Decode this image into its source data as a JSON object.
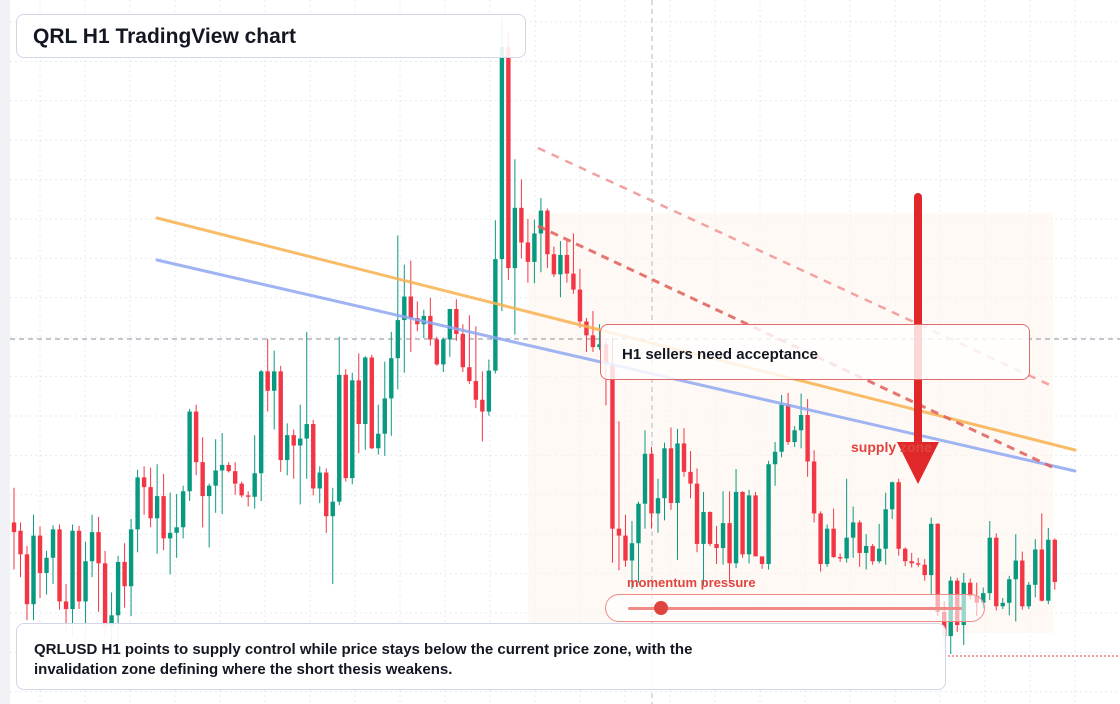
{
  "header": {
    "title": "QRL H1 TradingView chart"
  },
  "callout": {
    "text": "H1 sellers need acceptance"
  },
  "zone": {
    "label": "supply zone"
  },
  "momentum": {
    "label": "momentum pressure",
    "level": 0.1
  },
  "summary": {
    "text": "QRLUSD H1 points to supply control while price stays below the current price zone, with the invalidation zone defining where the short thesis weakens."
  },
  "colors": {
    "up": "#089981",
    "down": "#f23645",
    "accent": "#e0443e",
    "trend_orange": "#f7b250",
    "trend_blue": "#8fa8f0"
  },
  "chart_data": {
    "type": "candlestick",
    "symbol": "QRLUSD",
    "timeframe": "H1",
    "grid": true,
    "price_range": [
      0,
      100
    ],
    "candles": [
      [
        26.2,
        31.2,
        19.4,
        24.8
      ],
      [
        25.0,
        26.2,
        18.3,
        21.6
      ],
      [
        21.6,
        22.8,
        12.1,
        14.4
      ],
      [
        14.4,
        27.3,
        12.1,
        24.3
      ],
      [
        24.3,
        25.6,
        15.3,
        18.9
      ],
      [
        18.9,
        22.1,
        15.8,
        21.1
      ],
      [
        21.1,
        25.8,
        17.3,
        25.2
      ],
      [
        25.2,
        25.9,
        13.6,
        14.8
      ],
      [
        14.8,
        17.3,
        10.5,
        13.7
      ],
      [
        13.7,
        25.9,
        9.6,
        25.0
      ],
      [
        25.0,
        25.7,
        13.7,
        14.8
      ],
      [
        14.8,
        23.4,
        9.6,
        20.6
      ],
      [
        20.6,
        27.3,
        18.3,
        24.8
      ],
      [
        24.8,
        27.0,
        13.3,
        20.3
      ],
      [
        20.3,
        22.1,
        10.0,
        11.2
      ],
      [
        11.2,
        16.1,
        6.5,
        12.8
      ],
      [
        12.8,
        21.4,
        9.4,
        20.5
      ],
      [
        20.5,
        23.2,
        13.9,
        17.0
      ],
      [
        17.0,
        26.7,
        12.7,
        25.2
      ],
      [
        25.2,
        33.8,
        21.9,
        32.7
      ],
      [
        32.7,
        34.3,
        27.3,
        31.3
      ],
      [
        31.3,
        34.1,
        25.5,
        26.8
      ],
      [
        26.8,
        34.6,
        21.7,
        30.0
      ],
      [
        30.0,
        33.2,
        22.2,
        23.9
      ],
      [
        23.9,
        30.5,
        18.7,
        24.7
      ],
      [
        24.7,
        30.3,
        21.1,
        25.5
      ],
      [
        25.5,
        31.5,
        23.9,
        30.7
      ],
      [
        30.7,
        42.6,
        29.3,
        42.2
      ],
      [
        42.2,
        43.2,
        33.0,
        34.9
      ],
      [
        34.9,
        38.5,
        25.5,
        30.0
      ],
      [
        30.0,
        31.8,
        22.6,
        31.5
      ],
      [
        31.5,
        38.2,
        27.6,
        33.7
      ],
      [
        33.7,
        39.1,
        27.4,
        34.5
      ],
      [
        34.5,
        34.9,
        33.4,
        33.6
      ],
      [
        33.6,
        34.9,
        30.2,
        31.8
      ],
      [
        31.8,
        32.1,
        29.8,
        30.1
      ],
      [
        30.1,
        30.7,
        28.5,
        29.9
      ],
      [
        29.9,
        38.8,
        28.2,
        33.3
      ],
      [
        33.3,
        48.2,
        29.3,
        48.0
      ],
      [
        48.0,
        52.7,
        42.2,
        45.2
      ],
      [
        45.2,
        51.0,
        39.6,
        48.0
      ],
      [
        48.0,
        48.8,
        33.5,
        35.2
      ],
      [
        35.2,
        40.5,
        33.0,
        38.8
      ],
      [
        38.8,
        39.6,
        32.5,
        37.3
      ],
      [
        37.3,
        43.2,
        28.8,
        38.3
      ],
      [
        38.3,
        53.7,
        32.5,
        40.4
      ],
      [
        40.4,
        41.0,
        30.1,
        31.1
      ],
      [
        31.1,
        34.3,
        29.0,
        33.4
      ],
      [
        33.4,
        34.0,
        24.7,
        27.1
      ],
      [
        27.1,
        31.2,
        17.3,
        29.2
      ],
      [
        29.2,
        53.0,
        28.7,
        47.5
      ],
      [
        47.5,
        48.3,
        32.1,
        32.6
      ],
      [
        32.6,
        47.8,
        31.7,
        46.7
      ],
      [
        46.7,
        50.6,
        36.2,
        40.4
      ],
      [
        40.4,
        50.2,
        36.7,
        50.0
      ],
      [
        50.0,
        50.4,
        36.8,
        36.9
      ],
      [
        36.9,
        43.2,
        36.0,
        39.0
      ],
      [
        39.0,
        49.4,
        35.8,
        44.1
      ],
      [
        44.1,
        53.7,
        38.7,
        49.9
      ],
      [
        49.9,
        67.6,
        45.4,
        55.4
      ],
      [
        55.4,
        63.4,
        47.8,
        58.8
      ],
      [
        58.8,
        64.0,
        50.8,
        55.7
      ],
      [
        55.7,
        58.1,
        53.8,
        54.8
      ],
      [
        54.8,
        56.9,
        52.8,
        56.0
      ],
      [
        56.0,
        58.6,
        51.7,
        52.6
      ],
      [
        52.6,
        53.0,
        48.8,
        49.0
      ],
      [
        49.0,
        52.9,
        47.9,
        52.6
      ],
      [
        52.6,
        57.0,
        50.1,
        57.0
      ],
      [
        57.0,
        58.4,
        52.4,
        53.4
      ],
      [
        53.4,
        54.8,
        47.9,
        48.6
      ],
      [
        48.6,
        56.1,
        46.2,
        46.6
      ],
      [
        46.6,
        54.5,
        42.7,
        43.9
      ],
      [
        43.9,
        48.0,
        37.9,
        42.2
      ],
      [
        42.2,
        49.7,
        41.6,
        48.1
      ],
      [
        48.1,
        69.8,
        47.7,
        64.2
      ],
      [
        64.2,
        99.0,
        56.7,
        94.8
      ],
      [
        94.8,
        96.8,
        61.2,
        62.9
      ],
      [
        62.9,
        78.6,
        53.3,
        71.6
      ],
      [
        71.6,
        75.7,
        64.3,
        66.6
      ],
      [
        66.6,
        70.0,
        60.8,
        63.8
      ],
      [
        63.8,
        69.9,
        60.7,
        67.9
      ],
      [
        67.9,
        73.0,
        62.3,
        71.2
      ],
      [
        71.2,
        71.5,
        62.9,
        64.9
      ],
      [
        64.9,
        66.0,
        61.6,
        62.0
      ],
      [
        62.0,
        66.8,
        58.7,
        64.8
      ],
      [
        64.8,
        66.9,
        60.8,
        62.1
      ],
      [
        62.1,
        67.9,
        59.2,
        59.8
      ],
      [
        59.8,
        62.8,
        54.3,
        55.2
      ],
      [
        55.2,
        55.7,
        50.8,
        53.2
      ],
      [
        53.2,
        56.7,
        50.8,
        51.5
      ],
      [
        51.5,
        54.8,
        51.1,
        51.9
      ],
      [
        51.9,
        52.4,
        43.1,
        49.1
      ],
      [
        49.1,
        52.8,
        20.4,
        25.3
      ],
      [
        25.3,
        40.8,
        19.3,
        24.3
      ],
      [
        24.3,
        27.3,
        19.8,
        20.7
      ],
      [
        20.7,
        26.4,
        16.6,
        23.2
      ],
      [
        23.2,
        29.2,
        17.5,
        28.9
      ],
      [
        28.9,
        39.5,
        25.3,
        36.1
      ],
      [
        36.1,
        37.1,
        25.3,
        27.5
      ],
      [
        27.5,
        32.5,
        24.7,
        29.7
      ],
      [
        29.7,
        37.7,
        26.5,
        36.9
      ],
      [
        36.9,
        39.9,
        28.0,
        29.0
      ],
      [
        29.0,
        39.7,
        20.8,
        37.6
      ],
      [
        37.6,
        39.8,
        32.8,
        33.5
      ],
      [
        33.5,
        36.5,
        29.7,
        31.8
      ],
      [
        31.8,
        34.0,
        21.9,
        23.1
      ],
      [
        23.1,
        30.6,
        17.2,
        27.7
      ],
      [
        27.7,
        27.8,
        22.8,
        23.1
      ],
      [
        23.1,
        25.7,
        20.2,
        22.5
      ],
      [
        22.5,
        30.7,
        20.1,
        26.1
      ],
      [
        26.1,
        30.7,
        17.6,
        20.3
      ],
      [
        20.3,
        33.9,
        19.6,
        30.6
      ],
      [
        30.6,
        30.7,
        21.1,
        21.6
      ],
      [
        21.6,
        30.9,
        20.3,
        30.1
      ],
      [
        30.1,
        30.6,
        21.4,
        21.3
      ],
      [
        21.3,
        21.3,
        19.5,
        20.2
      ],
      [
        20.2,
        35.1,
        19.4,
        34.6
      ],
      [
        34.6,
        37.8,
        31.5,
        36.4
      ],
      [
        36.4,
        44.6,
        35.6,
        43.2
      ],
      [
        43.2,
        44.9,
        37.4,
        37.8
      ],
      [
        37.8,
        40.1,
        37.1,
        39.5
      ],
      [
        39.5,
        44.8,
        36.9,
        41.7
      ],
      [
        41.7,
        44.0,
        32.8,
        35.0
      ],
      [
        35.0,
        36.6,
        26.2,
        27.5
      ],
      [
        27.5,
        27.8,
        19.1,
        20.2
      ],
      [
        20.2,
        25.9,
        19.8,
        25.3
      ],
      [
        25.3,
        28.2,
        21.1,
        21.2
      ],
      [
        21.2,
        21.7,
        20.5,
        21.0
      ],
      [
        21.0,
        32.5,
        20.4,
        24.0
      ],
      [
        24.0,
        28.5,
        21.1,
        26.2
      ],
      [
        26.2,
        26.5,
        19.8,
        21.8
      ],
      [
        21.8,
        24.5,
        19.4,
        22.8
      ],
      [
        22.8,
        23.1,
        20.1,
        20.6
      ],
      [
        20.6,
        26.0,
        20.3,
        22.4
      ],
      [
        22.4,
        30.5,
        20.1,
        28.1
      ],
      [
        28.1,
        32.1,
        26.7,
        32.0
      ],
      [
        32.0,
        32.5,
        21.4,
        22.4
      ],
      [
        22.4,
        22.6,
        19.9,
        20.6
      ],
      [
        20.6,
        21.8,
        19.7,
        20.3
      ],
      [
        20.3,
        21.1,
        19.8,
        20.1
      ],
      [
        20.1,
        20.9,
        17.8,
        18.6
      ],
      [
        18.6,
        26.9,
        15.8,
        26.0
      ],
      [
        26.0,
        26.1,
        12.7,
        13.3
      ],
      [
        13.3,
        14.8,
        8.2,
        9.8
      ],
      [
        9.8,
        18.4,
        7.2,
        17.8
      ],
      [
        17.8,
        18.2,
        10.4,
        11.4
      ],
      [
        11.4,
        18.9,
        8.5,
        17.5
      ],
      [
        17.5,
        18.1,
        15.1,
        15.6
      ],
      [
        15.6,
        17.5,
        12.7,
        14.6
      ],
      [
        14.6,
        16.8,
        13.8,
        16.0
      ],
      [
        16.0,
        26.4,
        15.0,
        24.0
      ],
      [
        24.0,
        24.6,
        13.5,
        14.1
      ],
      [
        14.1,
        15.3,
        13.7,
        14.6
      ],
      [
        14.6,
        18.5,
        12.8,
        18.0
      ],
      [
        18.0,
        24.5,
        11.9,
        20.7
      ],
      [
        20.7,
        22.0,
        13.6,
        14.1
      ],
      [
        14.1,
        17.6,
        13.7,
        17.2
      ],
      [
        17.2,
        23.8,
        15.4,
        22.3
      ],
      [
        22.3,
        27.5,
        14.8,
        14.9
      ],
      [
        14.9,
        25.4,
        14.4,
        23.7
      ],
      [
        23.7,
        23.9,
        16.5,
        17.6
      ]
    ],
    "annotations": [
      "H1 sellers need acceptance",
      "supply zone",
      "momentum pressure"
    ]
  }
}
